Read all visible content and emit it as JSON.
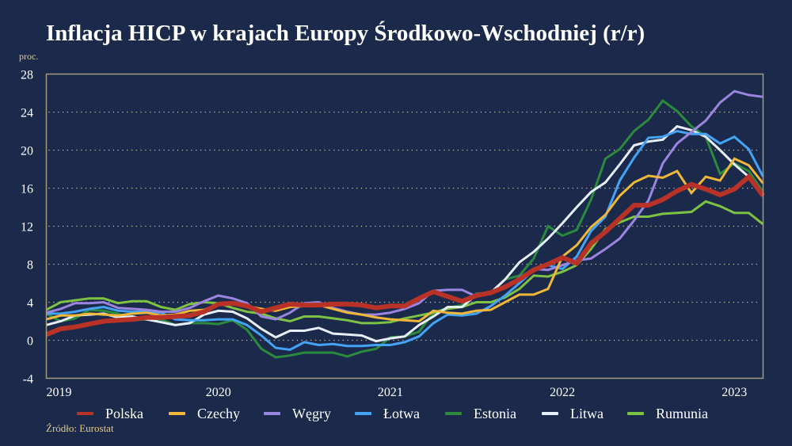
{
  "title": "Inflacja HICP w krajach Europy Środkowo-Wschodniej (r/r)",
  "source": "Źródło: Eurostat",
  "chart_data": {
    "type": "line",
    "title": "Inflacja HICP w krajach Europy Środkowo-Wschodniej (r/r)",
    "ylabel": "proc.",
    "xlabel": "",
    "ylim": [
      -4,
      28
    ],
    "yticks": [
      "-4",
      "0",
      "4",
      "8",
      "12",
      "16",
      "20",
      "24",
      "28"
    ],
    "xticks": [
      "2019",
      "2020",
      "2021",
      "2022",
      "2023"
    ],
    "x_start": "2019-01",
    "x_end": "2023-03",
    "frequency": "monthly",
    "grid": "horizontal dotted",
    "legend": "bottom",
    "series": [
      {
        "name": "Estonia",
        "color": "#2b8a3e",
        "values": [
          2.8,
          2.0,
          2.3,
          3.2,
          3.1,
          2.8,
          2.1,
          2.2,
          2.2,
          1.6,
          1.8,
          1.8,
          1.7,
          2.1,
          1.1,
          -0.9,
          -1.8,
          -1.6,
          -1.3,
          -1.3,
          -1.3,
          -1.7,
          -1.2,
          -0.9,
          0.3,
          0.4,
          0.9,
          2.9,
          3.4,
          3.7,
          4.9,
          5.0,
          6.4,
          6.8,
          8.6,
          12.0,
          11.0,
          11.6,
          14.8,
          19.1,
          20.1,
          22.0,
          23.2,
          25.2,
          24.1,
          22.5,
          21.4,
          17.5,
          18.6,
          17.8,
          15.6
        ]
      },
      {
        "name": "Rumunia",
        "color": "#7dc242",
        "values": [
          3.2,
          4.0,
          4.2,
          4.4,
          4.4,
          3.9,
          4.1,
          4.1,
          3.5,
          3.2,
          3.8,
          4.0,
          3.9,
          3.4,
          3.0,
          2.8,
          2.3,
          2.0,
          2.5,
          2.5,
          2.3,
          2.1,
          1.8,
          1.8,
          1.9,
          2.3,
          2.6,
          2.9,
          3.3,
          3.5,
          4.0,
          4.0,
          4.5,
          5.4,
          6.8,
          6.7,
          7.2,
          7.9,
          9.6,
          11.7,
          12.4,
          13.0,
          13.0,
          13.3,
          13.4,
          13.5,
          14.6,
          14.1,
          13.4,
          13.4,
          12.2
        ]
      },
      {
        "name": "Litwa",
        "color": "#e8eef8",
        "values": [
          1.6,
          2.0,
          2.6,
          2.7,
          2.8,
          2.4,
          2.5,
          2.2,
          1.9,
          1.6,
          1.8,
          2.7,
          3.1,
          3.0,
          2.3,
          1.2,
          0.3,
          1.0,
          1.0,
          1.3,
          0.7,
          0.6,
          0.5,
          -0.1,
          0.2,
          0.4,
          1.6,
          2.5,
          3.5,
          3.5,
          4.8,
          5.0,
          6.4,
          8.2,
          9.3,
          10.7,
          12.3,
          14.0,
          15.6,
          16.6,
          18.5,
          20.5,
          20.9,
          21.1,
          22.5,
          22.1,
          21.4,
          20.0,
          18.5,
          17.2,
          15.2
        ]
      },
      {
        "name": "Łotwa",
        "color": "#45a3f5",
        "values": [
          2.8,
          2.8,
          3.0,
          3.3,
          3.5,
          3.1,
          3.0,
          3.0,
          2.9,
          2.2,
          2.1,
          2.1,
          2.2,
          2.2,
          1.6,
          0.5,
          -0.8,
          -1.0,
          -0.2,
          -0.5,
          -0.4,
          -0.6,
          -0.6,
          -0.5,
          -0.5,
          -0.2,
          0.4,
          1.8,
          2.7,
          2.6,
          2.8,
          3.6,
          4.7,
          6.0,
          7.4,
          7.9,
          7.5,
          8.8,
          11.5,
          13.0,
          16.8,
          19.2,
          21.3,
          21.4,
          22.0,
          21.7,
          21.7,
          20.7,
          21.4,
          20.1,
          17.2
        ]
      },
      {
        "name": "Węgry",
        "color": "#9b85e0",
        "values": [
          2.9,
          3.3,
          3.9,
          3.9,
          4.0,
          3.4,
          3.3,
          3.2,
          3.0,
          3.0,
          3.4,
          4.1,
          4.7,
          4.4,
          3.9,
          2.5,
          2.2,
          2.9,
          3.9,
          4.0,
          3.4,
          3.0,
          2.7,
          2.7,
          2.9,
          3.3,
          3.9,
          5.2,
          5.3,
          5.3,
          4.6,
          4.9,
          5.5,
          6.6,
          7.5,
          7.4,
          7.9,
          8.4,
          8.6,
          9.6,
          10.7,
          12.6,
          14.7,
          18.6,
          20.7,
          21.9,
          23.1,
          25.0,
          26.2,
          25.8,
          25.6
        ]
      },
      {
        "name": "Czechy",
        "color": "#f0b73a",
        "values": [
          2.2,
          2.6,
          2.6,
          2.8,
          2.7,
          2.6,
          2.8,
          2.9,
          2.6,
          2.7,
          3.1,
          3.2,
          3.8,
          3.9,
          3.6,
          3.3,
          3.1,
          3.5,
          3.6,
          3.7,
          3.3,
          2.9,
          2.7,
          2.4,
          2.2,
          2.1,
          2.0,
          3.1,
          2.9,
          2.8,
          3.1,
          3.2,
          4.0,
          4.8,
          4.8,
          5.4,
          8.8,
          10.0,
          11.9,
          13.2,
          15.2,
          16.6,
          17.3,
          17.1,
          17.8,
          15.5,
          17.2,
          16.8,
          19.1,
          18.4,
          16.5
        ]
      },
      {
        "name": "Polska",
        "color": "#b83227",
        "values": [
          0.6,
          1.2,
          1.4,
          1.7,
          2.0,
          2.1,
          2.2,
          2.4,
          2.4,
          2.5,
          2.6,
          3.0,
          3.8,
          3.9,
          3.6,
          3.0,
          3.4,
          3.8,
          3.7,
          3.7,
          3.8,
          3.8,
          3.7,
          3.4,
          3.6,
          3.6,
          4.4,
          5.1,
          4.6,
          4.1,
          4.7,
          5.0,
          5.6,
          6.4,
          7.4,
          8.0,
          8.7,
          8.1,
          10.2,
          11.4,
          12.8,
          14.2,
          14.2,
          14.8,
          15.7,
          16.4,
          15.9,
          15.3,
          15.9,
          17.2,
          15.2
        ]
      }
    ],
    "legend_order": [
      "Polska",
      "Czechy",
      "Węgry",
      "Łotwa",
      "Estonia",
      "Litwa",
      "Rumunia"
    ]
  }
}
